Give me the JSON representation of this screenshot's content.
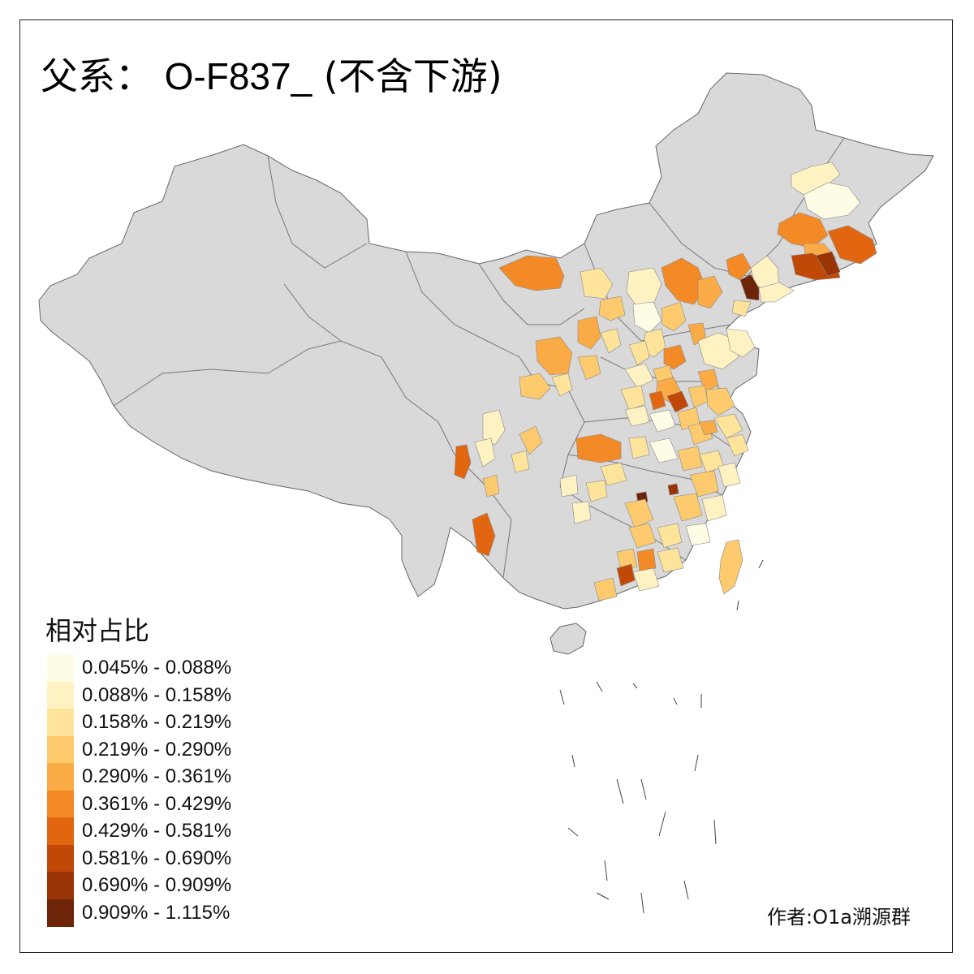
{
  "title_prefix": "父系：",
  "title_haplogroup": "O-F837_",
  "title_suffix": "(不含下游)",
  "legend": {
    "title": "相对占比",
    "classes": [
      {
        "label": "0.045% - 0.088%",
        "color": "#fffce6"
      },
      {
        "label": "0.088% - 0.158%",
        "color": "#fff2c2"
      },
      {
        "label": "0.158% - 0.219%",
        "color": "#fee49b"
      },
      {
        "label": "0.219% - 0.290%",
        "color": "#fdcb6e"
      },
      {
        "label": "0.290% - 0.361%",
        "color": "#fbab46"
      },
      {
        "label": "0.361% - 0.429%",
        "color": "#f48a25"
      },
      {
        "label": "0.429% - 0.581%",
        "color": "#e2660f"
      },
      {
        "label": "0.581% - 0.690%",
        "color": "#c24808"
      },
      {
        "label": "0.690% - 0.909%",
        "color": "#9a3306"
      },
      {
        "label": "0.909% - 1.115%",
        "color": "#6e2408"
      }
    ]
  },
  "colors": {
    "no_data": "#d9d9d9",
    "border": "#666666",
    "frame": "#222222"
  },
  "credit": "作者:O1a溯源群"
}
